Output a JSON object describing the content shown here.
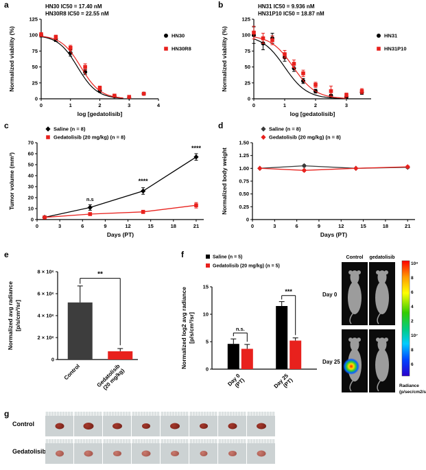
{
  "letters": {
    "a": "a",
    "b": "b",
    "c": "c",
    "d": "d",
    "e": "e",
    "f": "f",
    "g": "g"
  },
  "colors": {
    "red": "#e8211d",
    "black": "#000000",
    "dark_gray": "#3d3d3d"
  },
  "mouse_panel": {
    "col_headers": [
      "Control",
      "gedatolisib"
    ],
    "row_labels": [
      "Day 0",
      "Day 25"
    ],
    "scale_labels": [
      "10⁸",
      "8",
      "6",
      "4",
      "2",
      "10⁷",
      "8",
      "6"
    ],
    "scale_caption": [
      "Radiance",
      "(p/sec/cm2/sr)"
    ]
  },
  "panel_g": {
    "rows": [
      {
        "label": "Control",
        "tumor_color": "#6f1f17",
        "tumor_hi": "#a5382b",
        "tumors": [
          [
            13,
            9
          ],
          [
            15,
            10
          ],
          [
            14,
            9
          ],
          [
            12,
            8
          ],
          [
            14,
            9
          ],
          [
            12,
            8
          ],
          [
            13,
            9
          ],
          [
            14,
            9
          ]
        ]
      },
      {
        "label": "Gedatolisib",
        "tumor_color": "#9e4f46",
        "tumor_hi": "#c97a6e",
        "tumors": [
          [
            12,
            9
          ],
          [
            13,
            9
          ],
          [
            12,
            8
          ],
          [
            13,
            9
          ],
          [
            12,
            8
          ],
          [
            11,
            8
          ],
          [
            12,
            8
          ],
          [
            13,
            9
          ]
        ]
      }
    ]
  },
  "chart_data": [
    {
      "id": "chart-a",
      "type": "line",
      "title_lines": [
        "HN30 IC50 = 17.40 nM",
        "HN30R8 IC50 = 22.55 nM"
      ],
      "xlabel": "log [gedatolisib]",
      "ylabel": [
        "Normalized viability (%)"
      ],
      "xlim": [
        0,
        4
      ],
      "ylim": [
        0,
        125
      ],
      "xticks": [
        0,
        1,
        2,
        3,
        4
      ],
      "yticks": [
        0,
        25,
        50,
        75,
        100,
        125
      ],
      "legend": true,
      "series": [
        {
          "name": "HN30",
          "color": "#000000",
          "marker": "circle",
          "fit": {
            "top": 100,
            "hill": 1.3,
            "logec50": 1.24,
            "xmax": 2.8
          },
          "x": [
            0,
            0.5,
            1,
            1.5,
            2,
            2.5,
            3,
            3.5
          ],
          "y": [
            100,
            94,
            72,
            42,
            13,
            4,
            2,
            8
          ],
          "err": [
            3,
            4,
            5,
            4,
            3,
            2,
            2,
            2
          ]
        },
        {
          "name": "HN30R8",
          "color": "#e8211d",
          "marker": "square",
          "fit": {
            "top": 100,
            "hill": 1.3,
            "logec50": 1.353,
            "xmax": 2.8
          },
          "x": [
            0,
            0.5,
            1,
            1.5,
            2,
            2.5,
            3,
            3.5
          ],
          "y": [
            101,
            97,
            80,
            50,
            17,
            5,
            3,
            8
          ],
          "err": [
            3,
            3,
            4,
            5,
            3,
            2,
            2,
            2
          ]
        }
      ]
    },
    {
      "id": "chart-b",
      "type": "line",
      "title_lines": [
        "HN31 IC50 = 9.936 nM",
        "HN31P10 IC50 = 18.87 nM"
      ],
      "xlabel": "log [gedatolisib]",
      "ylabel": [
        "Normalized viability (%)"
      ],
      "xlim": [
        0,
        3.8
      ],
      "ylim": [
        0,
        125
      ],
      "xticks": [
        0,
        1,
        2,
        3
      ],
      "yticks": [
        0,
        25,
        50,
        75,
        100,
        125
      ],
      "legend": true,
      "series": [
        {
          "name": "HN31",
          "color": "#000000",
          "marker": "circle",
          "fit": {
            "top": 100,
            "hill": 1.2,
            "logec50": 0.997,
            "xmax": 2.9
          },
          "x": [
            0,
            0.3,
            0.6,
            1,
            1.3,
            1.6,
            2,
            2.5,
            3,
            3.5
          ],
          "y": [
            100,
            87,
            95,
            65,
            48,
            28,
            12,
            5,
            3,
            10
          ],
          "err": [
            13,
            10,
            8,
            6,
            5,
            4,
            3,
            2,
            2,
            3
          ]
        },
        {
          "name": "HN31P10",
          "color": "#e8211d",
          "marker": "square",
          "fit": {
            "top": 100,
            "hill": 1.2,
            "logec50": 1.276,
            "xmax": 3.0
          },
          "x": [
            0,
            0.3,
            0.6,
            1,
            1.3,
            1.6,
            2,
            2.5,
            3,
            3.5
          ],
          "y": [
            104,
            95,
            92,
            70,
            55,
            40,
            22,
            12,
            6,
            12
          ],
          "err": [
            10,
            8,
            7,
            6,
            6,
            5,
            4,
            8,
            3,
            4
          ]
        }
      ]
    },
    {
      "id": "chart-c",
      "type": "line",
      "xlabel": "Days (PT)",
      "ylabel": [
        "Tumor volume (mm³)"
      ],
      "xlim": [
        0,
        22
      ],
      "ylim": [
        0,
        70
      ],
      "xticks": [
        0,
        3,
        6,
        9,
        12,
        15,
        18,
        21
      ],
      "yticks": [
        0,
        10,
        20,
        30,
        40,
        50,
        60,
        70
      ],
      "legend": true,
      "series": [
        {
          "name": "Saline (n = 8)",
          "color": "#000000",
          "marker": "diamond",
          "connect": true,
          "x": [
            1,
            7,
            14,
            21
          ],
          "y": [
            2,
            11,
            26,
            57
          ],
          "err": [
            0.5,
            2.5,
            3,
            3
          ]
        },
        {
          "name": "Gedatolisib (20 mg/kg) (n = 8)",
          "color": "#e8211d",
          "marker": "square",
          "connect": true,
          "x": [
            1,
            7,
            14,
            21
          ],
          "y": [
            2,
            5,
            7,
            13
          ],
          "err": [
            0.5,
            1,
            1.5,
            2.5
          ]
        }
      ],
      "annotations": [
        {
          "x": 7,
          "y": 17,
          "text": "n.s",
          "size": 7.5
        },
        {
          "x": 14,
          "y": 33,
          "text": "****",
          "size": 9
        },
        {
          "x": 21,
          "y": 63,
          "text": "****",
          "size": 9
        }
      ]
    },
    {
      "id": "chart-d",
      "type": "line",
      "xlabel": "Days (PT)",
      "ylabel": [
        "Normalized body weight"
      ],
      "xlim": [
        0,
        22
      ],
      "ylim": [
        0,
        1.5
      ],
      "xticks": [
        0,
        3,
        6,
        9,
        12,
        15,
        18,
        21
      ],
      "yticks": [
        0,
        0.25,
        0.5,
        0.75,
        1,
        1.25,
        1.5
      ],
      "ytick_labels": [
        "0",
        "0.25",
        "0.50",
        "0.75",
        "1.00",
        "1.25",
        "1.50"
      ],
      "legend": true,
      "series": [
        {
          "name": "Saline (n = 8)",
          "color": "#3a3a3a",
          "marker": "diamond",
          "connect": true,
          "x": [
            1,
            7,
            14,
            21
          ],
          "y": [
            1.0,
            1.05,
            1.0,
            1.02
          ],
          "err": [
            0.01,
            0.02,
            0.01,
            0.02
          ]
        },
        {
          "name": "Gedatolisib (20 mg/kg) (n = 8)",
          "color": "#e8211d",
          "marker": "diamond",
          "connect": true,
          "x": [
            1,
            7,
            14,
            21
          ],
          "y": [
            1.0,
            0.96,
            1.0,
            1.03
          ],
          "err": [
            0.01,
            0.02,
            0.01,
            0.02
          ]
        }
      ]
    },
    {
      "id": "chart-e",
      "type": "bar",
      "ylabel": [
        "Normalized avg radiance",
        "[p/s/cm²/sr]"
      ],
      "ylim": [
        0,
        8000000
      ],
      "yticks": [
        0,
        2000000,
        4000000,
        6000000,
        8000000
      ],
      "ytick_labels": [
        "0",
        "2 × 10⁶",
        "4 × 10⁶",
        "6 × 10⁶",
        "8 × 10⁶"
      ],
      "bars": [
        {
          "label_lines": [
            "Control"
          ],
          "value": 5200000,
          "err": 1500000,
          "color": "#3d3d3d"
        },
        {
          "label_lines": [
            "Gedatolisib",
            "(20 mg/kg)"
          ],
          "value": 750000,
          "err": 250000,
          "color": "#e8211d"
        }
      ],
      "brackets": [
        {
          "b1": 0,
          "b2": 1,
          "y": 7400000,
          "y1": 6900000,
          "y2": 1300000,
          "text": "**",
          "size": 10
        }
      ]
    },
    {
      "id": "chart-f",
      "type": "bar",
      "ylabel": [
        "Normalized log2 avg radiance",
        "[p/s/cm²/sr]"
      ],
      "ylim": [
        0,
        15
      ],
      "yticks": [
        0,
        5,
        10,
        15
      ],
      "legend": true,
      "categories": [
        {
          "label_lines": [
            "Day 0",
            "(PT)"
          ]
        },
        {
          "label_lines": [
            "Day 25",
            "(PT)"
          ]
        }
      ],
      "series": [
        {
          "name": "Saline (n = 5)",
          "color": "#000000",
          "values": [
            4.6,
            11.5
          ],
          "errors": [
            0.9,
            0.8
          ]
        },
        {
          "name": "Gedatolisib (20 mg/kg) (n = 5)",
          "color": "#e8211d",
          "values": [
            3.7,
            5.2
          ],
          "errors": [
            0.8,
            0.5
          ]
        }
      ],
      "brackets": [
        {
          "b1": 0,
          "b2": 1,
          "y": 6.6,
          "y1": 6.0,
          "y2": 5.0,
          "text": "n.s.",
          "size": 7.5
        },
        {
          "b1": 2,
          "b2": 3,
          "y": 13.4,
          "y1": 12.7,
          "y2": 6.2,
          "text": "***",
          "size": 9
        }
      ]
    }
  ]
}
